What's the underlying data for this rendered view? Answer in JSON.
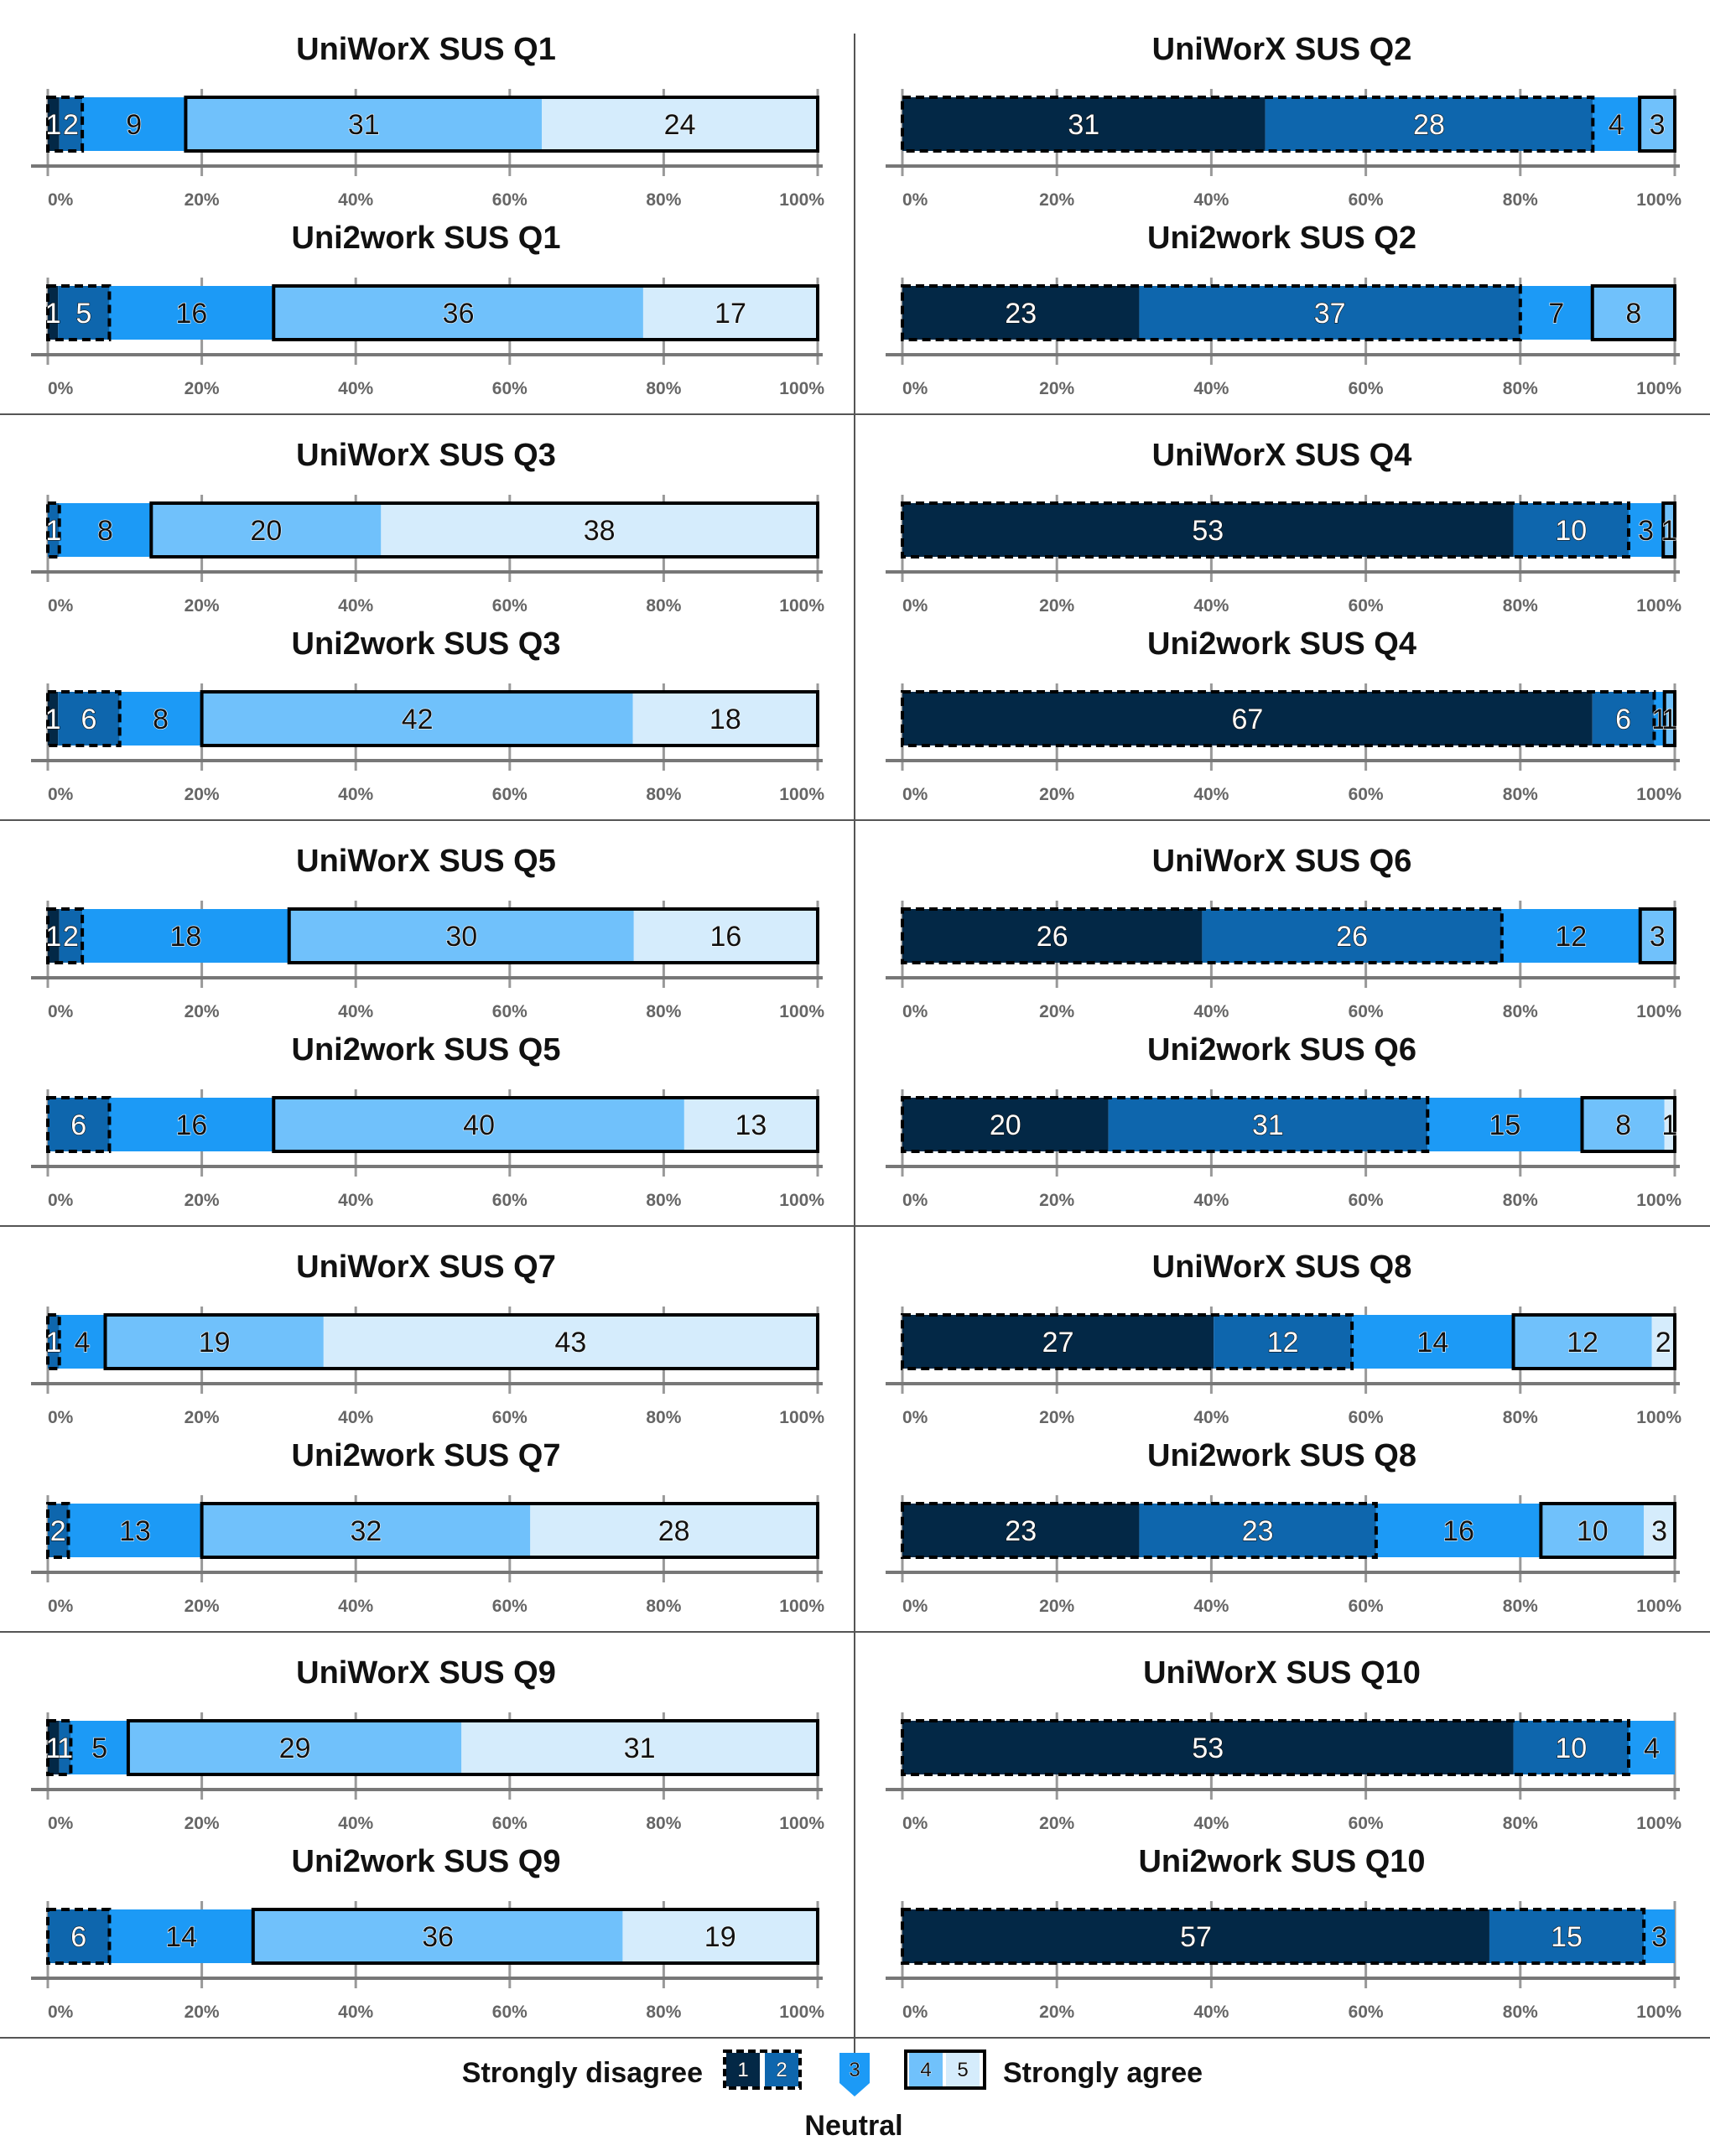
{
  "figure": {
    "legend": {
      "left_label": "Strongly disagree",
      "right_label": "Strongly agree",
      "neutral_label": "Neutral",
      "levels": [
        "1",
        "2",
        "3",
        "4",
        "5"
      ]
    },
    "colors": {
      "level1": "#032846",
      "level2": "#0e66ad",
      "level3": "#1c9af6",
      "level4": "#70c1fb",
      "level5": "#d5ecfc",
      "axis": "#777777",
      "tick_label": "#666666",
      "separator": "#555555"
    }
  },
  "chart_data": [
    {
      "type": "bar",
      "title": "UniWorX SUS Q1",
      "categories": [
        "1",
        "2",
        "3",
        "4",
        "5"
      ],
      "values": [
        1,
        2,
        9,
        31,
        24
      ],
      "xlim_percent": [
        0,
        100
      ],
      "xticks": [
        "0%",
        "20%",
        "40%",
        "60%",
        "80%",
        "100%"
      ]
    },
    {
      "type": "bar",
      "title": "Uni2work SUS Q1",
      "categories": [
        "1",
        "2",
        "3",
        "4",
        "5"
      ],
      "values": [
        1,
        5,
        16,
        36,
        17
      ],
      "xlim_percent": [
        0,
        100
      ],
      "xticks": [
        "0%",
        "20%",
        "40%",
        "60%",
        "80%",
        "100%"
      ]
    },
    {
      "type": "bar",
      "title": "UniWorX SUS Q2",
      "categories": [
        "1",
        "2",
        "3",
        "4",
        "5"
      ],
      "values": [
        31,
        28,
        4,
        3,
        0
      ],
      "xlim_percent": [
        0,
        100
      ],
      "xticks": [
        "0%",
        "20%",
        "40%",
        "60%",
        "80%",
        "100%"
      ]
    },
    {
      "type": "bar",
      "title": "Uni2work SUS Q2",
      "categories": [
        "1",
        "2",
        "3",
        "4",
        "5"
      ],
      "values": [
        23,
        37,
        7,
        8,
        0
      ],
      "xlim_percent": [
        0,
        100
      ],
      "xticks": [
        "0%",
        "20%",
        "40%",
        "60%",
        "80%",
        "100%"
      ]
    },
    {
      "type": "bar",
      "title": "UniWorX SUS Q3",
      "categories": [
        "1",
        "2",
        "3",
        "4",
        "5"
      ],
      "values": [
        0,
        1,
        8,
        20,
        38
      ],
      "xlim_percent": [
        0,
        100
      ],
      "xticks": [
        "0%",
        "20%",
        "40%",
        "60%",
        "80%",
        "100%"
      ]
    },
    {
      "type": "bar",
      "title": "Uni2work SUS Q3",
      "categories": [
        "1",
        "2",
        "3",
        "4",
        "5"
      ],
      "values": [
        1,
        6,
        8,
        42,
        18
      ],
      "xlim_percent": [
        0,
        100
      ],
      "xticks": [
        "0%",
        "20%",
        "40%",
        "60%",
        "80%",
        "100%"
      ]
    },
    {
      "type": "bar",
      "title": "UniWorX SUS Q4",
      "categories": [
        "1",
        "2",
        "3",
        "4",
        "5"
      ],
      "values": [
        53,
        10,
        3,
        1,
        0
      ],
      "xlim_percent": [
        0,
        100
      ],
      "xticks": [
        "0%",
        "20%",
        "40%",
        "60%",
        "80%",
        "100%"
      ]
    },
    {
      "type": "bar",
      "title": "Uni2work SUS Q4",
      "categories": [
        "1",
        "2",
        "3",
        "4",
        "5"
      ],
      "values": [
        67,
        6,
        1,
        1,
        0
      ],
      "xlim_percent": [
        0,
        100
      ],
      "xticks": [
        "0%",
        "20%",
        "40%",
        "60%",
        "80%",
        "100%"
      ]
    },
    {
      "type": "bar",
      "title": "UniWorX SUS Q5",
      "categories": [
        "1",
        "2",
        "3",
        "4",
        "5"
      ],
      "values": [
        1,
        2,
        18,
        30,
        16
      ],
      "xlim_percent": [
        0,
        100
      ],
      "xticks": [
        "0%",
        "20%",
        "40%",
        "60%",
        "80%",
        "100%"
      ]
    },
    {
      "type": "bar",
      "title": "Uni2work SUS Q5",
      "categories": [
        "1",
        "2",
        "3",
        "4",
        "5"
      ],
      "values": [
        0,
        6,
        16,
        40,
        13
      ],
      "xlim_percent": [
        0,
        100
      ],
      "xticks": [
        "0%",
        "20%",
        "40%",
        "60%",
        "80%",
        "100%"
      ]
    },
    {
      "type": "bar",
      "title": "UniWorX SUS Q6",
      "categories": [
        "1",
        "2",
        "3",
        "4",
        "5"
      ],
      "values": [
        26,
        26,
        12,
        3,
        0
      ],
      "xlim_percent": [
        0,
        100
      ],
      "xticks": [
        "0%",
        "20%",
        "40%",
        "60%",
        "80%",
        "100%"
      ]
    },
    {
      "type": "bar",
      "title": "Uni2work SUS Q6",
      "categories": [
        "1",
        "2",
        "3",
        "4",
        "5"
      ],
      "values": [
        20,
        31,
        15,
        8,
        1
      ],
      "xlim_percent": [
        0,
        100
      ],
      "xticks": [
        "0%",
        "20%",
        "40%",
        "60%",
        "80%",
        "100%"
      ]
    },
    {
      "type": "bar",
      "title": "UniWorX SUS Q7",
      "categories": [
        "1",
        "2",
        "3",
        "4",
        "5"
      ],
      "values": [
        0,
        1,
        4,
        19,
        43
      ],
      "xlim_percent": [
        0,
        100
      ],
      "xticks": [
        "0%",
        "20%",
        "40%",
        "60%",
        "80%",
        "100%"
      ]
    },
    {
      "type": "bar",
      "title": "Uni2work SUS Q7",
      "categories": [
        "1",
        "2",
        "3",
        "4",
        "5"
      ],
      "values": [
        0,
        2,
        13,
        32,
        28
      ],
      "xlim_percent": [
        0,
        100
      ],
      "xticks": [
        "0%",
        "20%",
        "40%",
        "60%",
        "80%",
        "100%"
      ]
    },
    {
      "type": "bar",
      "title": "UniWorX SUS Q8",
      "categories": [
        "1",
        "2",
        "3",
        "4",
        "5"
      ],
      "values": [
        27,
        12,
        14,
        12,
        2
      ],
      "xlim_percent": [
        0,
        100
      ],
      "xticks": [
        "0%",
        "20%",
        "40%",
        "60%",
        "80%",
        "100%"
      ]
    },
    {
      "type": "bar",
      "title": "Uni2work SUS Q8",
      "categories": [
        "1",
        "2",
        "3",
        "4",
        "5"
      ],
      "values": [
        23,
        23,
        16,
        10,
        3
      ],
      "xlim_percent": [
        0,
        100
      ],
      "xticks": [
        "0%",
        "20%",
        "40%",
        "60%",
        "80%",
        "100%"
      ]
    },
    {
      "type": "bar",
      "title": "UniWorX SUS Q9",
      "categories": [
        "1",
        "2",
        "3",
        "4",
        "5"
      ],
      "values": [
        1,
        1,
        5,
        29,
        31
      ],
      "xlim_percent": [
        0,
        100
      ],
      "xticks": [
        "0%",
        "20%",
        "40%",
        "60%",
        "80%",
        "100%"
      ]
    },
    {
      "type": "bar",
      "title": "Uni2work SUS Q9",
      "categories": [
        "1",
        "2",
        "3",
        "4",
        "5"
      ],
      "values": [
        0,
        6,
        14,
        36,
        19
      ],
      "xlim_percent": [
        0,
        100
      ],
      "xticks": [
        "0%",
        "20%",
        "40%",
        "60%",
        "80%",
        "100%"
      ]
    },
    {
      "type": "bar",
      "title": "UniWorX SUS Q10",
      "categories": [
        "1",
        "2",
        "3",
        "4",
        "5"
      ],
      "values": [
        53,
        10,
        4,
        0,
        0
      ],
      "xlim_percent": [
        0,
        100
      ],
      "xticks": [
        "0%",
        "20%",
        "40%",
        "60%",
        "80%",
        "100%"
      ]
    },
    {
      "type": "bar",
      "title": "Uni2work SUS Q10",
      "categories": [
        "1",
        "2",
        "3",
        "4",
        "5"
      ],
      "values": [
        57,
        15,
        3,
        0,
        0
      ],
      "xlim_percent": [
        0,
        100
      ],
      "xticks": [
        "0%",
        "20%",
        "40%",
        "60%",
        "80%",
        "100%"
      ]
    }
  ]
}
